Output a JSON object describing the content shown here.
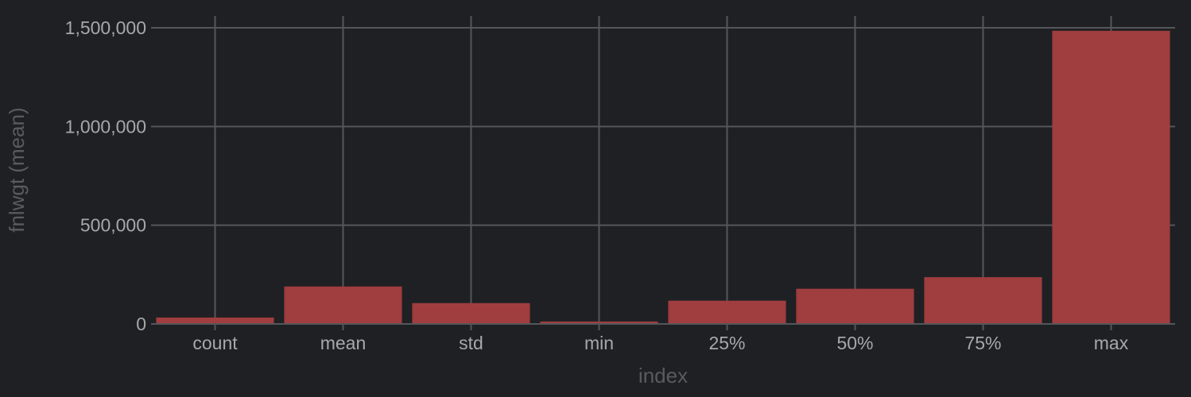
{
  "chart_data": {
    "type": "bar",
    "categories": [
      "count",
      "mean",
      "std",
      "min",
      "25%",
      "50%",
      "75%",
      "max"
    ],
    "series": [
      {
        "values": [
          32561,
          189778,
          105550,
          12285,
          117827,
          178356,
          237051,
          1484705
        ]
      }
    ],
    "xlabel": "index",
    "ylabel": "fnlwgt (mean)",
    "ylim": [
      0,
      1500000
    ],
    "yticks": [
      0,
      500000,
      1000000,
      1500000
    ],
    "ytick_labels": [
      "0",
      "500,000",
      "1,000,000",
      "1,500,000"
    ],
    "grid": true,
    "bar_color": "#a03d3f",
    "background": "#1f2024"
  }
}
